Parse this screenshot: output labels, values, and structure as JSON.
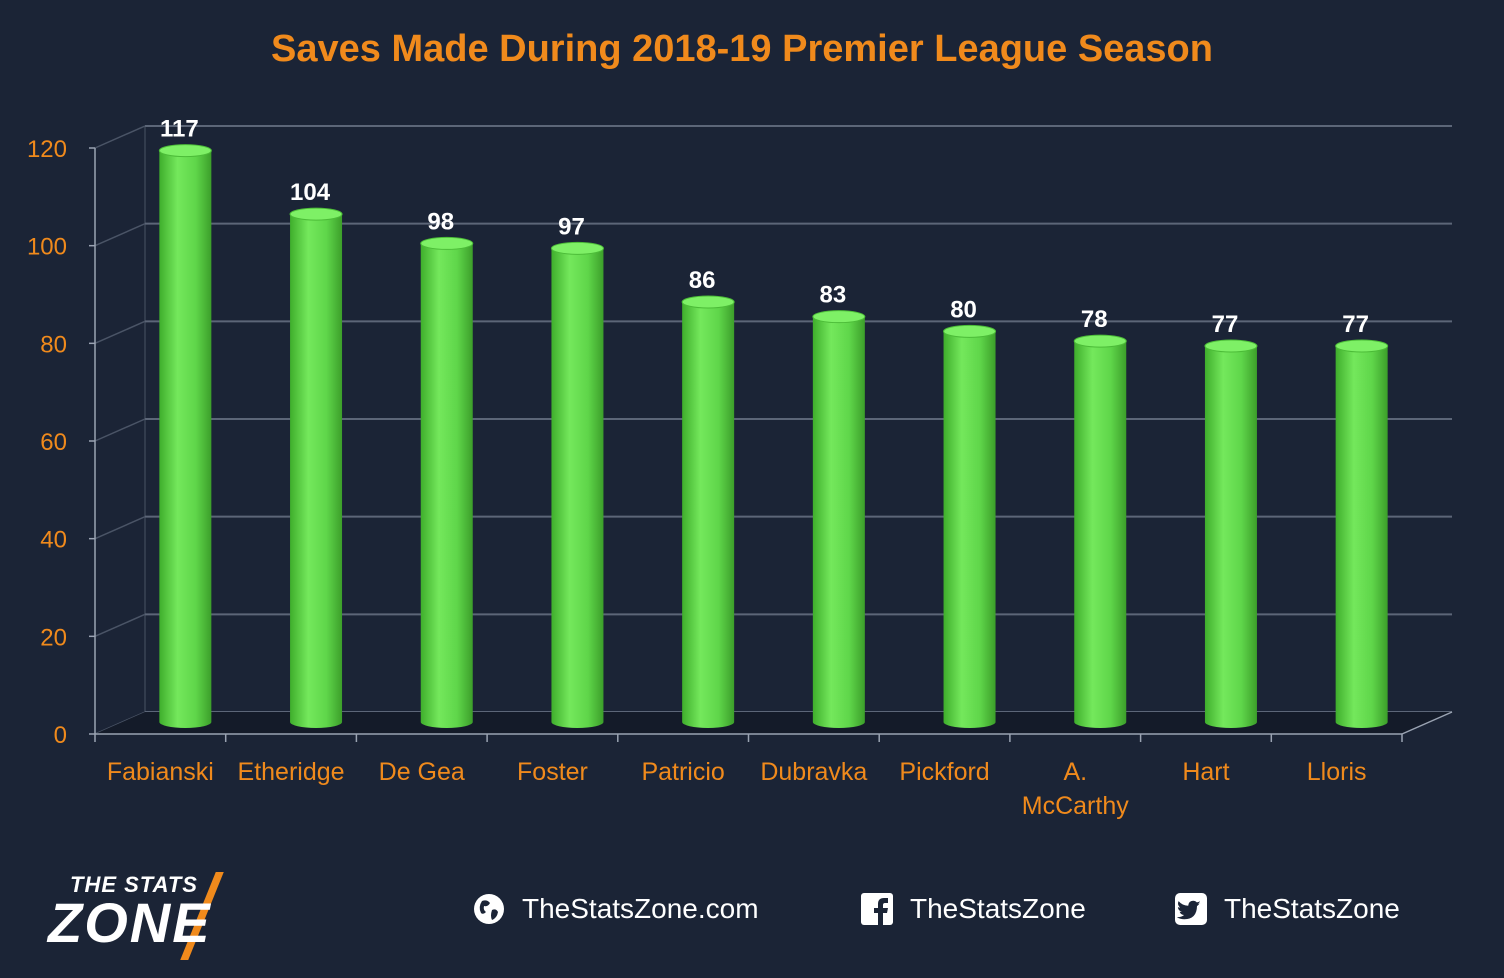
{
  "title": "Saves Made During 2018-19 Premier League Season",
  "chart_data": {
    "type": "bar",
    "title": "Saves Made During 2018-19 Premier League Season",
    "categories": [
      "Fabianski",
      "Etheridge",
      "De Gea",
      "Foster",
      "Patricio",
      "Dubravka",
      "Pickford",
      "A. McCarthy",
      "Hart",
      "Lloris"
    ],
    "category_lines": [
      [
        "Fabianski"
      ],
      [
        "Etheridge"
      ],
      [
        "De Gea"
      ],
      [
        "Foster"
      ],
      [
        "Patricio"
      ],
      [
        "Dubravka"
      ],
      [
        "Pickford"
      ],
      [
        "A.",
        "McCarthy"
      ],
      [
        "Hart"
      ],
      [
        "Lloris"
      ]
    ],
    "values": [
      117,
      104,
      98,
      97,
      86,
      83,
      80,
      78,
      77,
      77
    ],
    "ylim": [
      0,
      120
    ],
    "yticks": [
      0,
      20,
      40,
      60,
      80,
      100,
      120
    ],
    "xlabel": "",
    "ylabel": "",
    "grid": true,
    "bar_color": "#5fd64a",
    "label_color": "#ffffff",
    "axis_text_color": "#f08a1c"
  },
  "footer": {
    "logo_top": "THE STATS",
    "logo_main": "ZONE",
    "website": "TheStatsZone.com",
    "facebook": "TheStatsZone",
    "twitter": "TheStatsZone",
    "website_icon": "globe-icon",
    "facebook_icon": "facebook-icon",
    "twitter_icon": "twitter-icon"
  },
  "colors": {
    "background": "#1b2436",
    "accent": "#f08a1c",
    "bar": "#5fd64a"
  }
}
